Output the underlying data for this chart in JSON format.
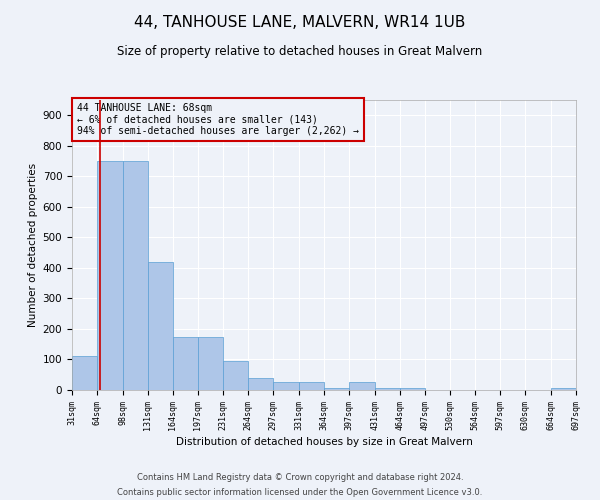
{
  "title": "44, TANHOUSE LANE, MALVERN, WR14 1UB",
  "subtitle": "Size of property relative to detached houses in Great Malvern",
  "xlabel": "Distribution of detached houses by size in Great Malvern",
  "ylabel": "Number of detached properties",
  "footer_line1": "Contains HM Land Registry data © Crown copyright and database right 2024.",
  "footer_line2": "Contains public sector information licensed under the Open Government Licence v3.0.",
  "bar_color": "#aec6e8",
  "bar_edge_color": "#5a9fd4",
  "property_line_color": "#cc0000",
  "annotation_box_color": "#cc0000",
  "background_color": "#eef2f9",
  "property_size": 68,
  "annotation_text_line1": "44 TANHOUSE LANE: 68sqm",
  "annotation_text_line2": "← 6% of detached houses are smaller (143)",
  "annotation_text_line3": "94% of semi-detached houses are larger (2,262) →",
  "bin_edges": [
    31,
    64,
    98,
    131,
    164,
    197,
    231,
    264,
    297,
    331,
    364,
    397,
    431,
    464,
    497,
    530,
    564,
    597,
    630,
    664,
    697
  ],
  "bin_heights": [
    110,
    750,
    750,
    420,
    175,
    175,
    95,
    40,
    25,
    25,
    5,
    25,
    5,
    5,
    0,
    0,
    0,
    0,
    0,
    5
  ],
  "ylim": [
    0,
    950
  ],
  "yticks": [
    0,
    100,
    200,
    300,
    400,
    500,
    600,
    700,
    800,
    900
  ]
}
